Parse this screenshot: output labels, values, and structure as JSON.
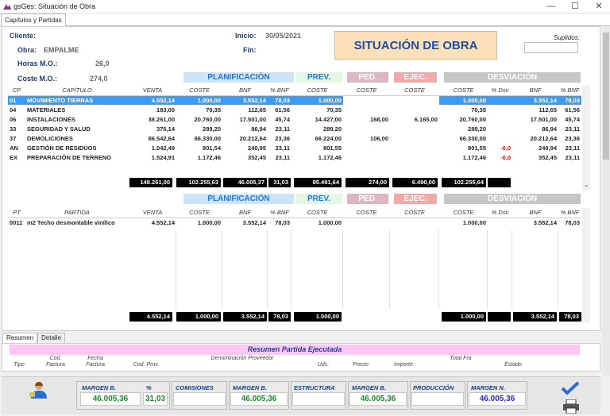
{
  "window": {
    "title": "gsGes: Situación de Obra",
    "minimize": "—",
    "maximize": "☐",
    "close": "✕"
  },
  "tabs": {
    "main": "Capítulos y Partidas"
  },
  "header": {
    "cliente_label": "Cliente:",
    "obra_label": "Obra:",
    "obra_value": "EMPALME",
    "horas_label": "Horas M.O.:",
    "horas_value": "26,0",
    "coste_label": "Coste M.O.:",
    "coste_value": "274,0",
    "inicio_label": "Inicio:",
    "inicio_value": "30/05/2021",
    "fin_label": "Fin:",
    "banner": "SITUACIÓN DE OBRA",
    "suplidos_label": "Suplidos:"
  },
  "groups": {
    "plan": "PLANIFICACIÓN",
    "prev": "PREV.",
    "ped": "PED.",
    "ejec": "EJEC.",
    "desv": "DESVIACIÓN"
  },
  "chapters": {
    "columns": [
      "CP",
      "CAPÍTULO",
      "VENTA",
      "COSTE",
      "BNF",
      "% BNF",
      "COSTE",
      "COSTE",
      "COSTE",
      "COSTE",
      "% Dsv",
      "BNF",
      "% BNF"
    ],
    "rows": [
      [
        "01",
        "MOVIMIENTO TIERRAS",
        "4.552,14",
        "1.000,00",
        "3.552,14",
        "78,03",
        "1.000,00",
        "",
        "",
        "1.000,00",
        "",
        "3.552,14",
        "78,03"
      ],
      [
        "04",
        "MATERIALES",
        "183,00",
        "70,35",
        "112,65",
        "61,56",
        "70,35",
        "",
        "",
        "70,35",
        "",
        "112,65",
        "61,56"
      ],
      [
        "06",
        "INSTALACIONES",
        "38.261,00",
        "20.760,00",
        "17.501,00",
        "45,74",
        "14.427,00",
        "168,00",
        "6.165,00",
        "20.760,00",
        "",
        "17.501,00",
        "45,74"
      ],
      [
        "33",
        "SEGURIDAD Y SALUD",
        "376,14",
        "289,20",
        "86,94",
        "23,11",
        "289,20",
        "",
        "",
        "289,20",
        "",
        "86,94",
        "23,11"
      ],
      [
        "37",
        "DEMOLICIONES",
        "86.542,64",
        "66.330,00",
        "20.212,64",
        "23,36",
        "66.224,00",
        "106,00",
        "",
        "66.330,00",
        "",
        "20.212,64",
        "23,36"
      ],
      [
        "AN",
        "GESTIÓN DE RESIDUOS",
        "1.042,49",
        "801,54",
        "240,95",
        "23,11",
        "801,55",
        "",
        "",
        "801,55",
        "-0,0",
        "240,94",
        "23,11"
      ],
      [
        "EX",
        "PREPARACIÓN DE TERRENO",
        "1.524,91",
        "1.172,46",
        "352,45",
        "23,11",
        "1.172,46",
        "",
        "",
        "1.172,46",
        "-0,0",
        "352,45",
        "23,11"
      ]
    ],
    "totals": [
      "148.261,00",
      "102.255,63",
      "46.005,37",
      "31,03",
      "95.491,64",
      "274,00",
      "6.490,00",
      "102.255,64"
    ]
  },
  "partidas": {
    "columns": [
      "PT",
      "PARTIDA",
      "VENTA",
      "COSTE",
      "BNF",
      "% BNF",
      "COSTE",
      "COSTE",
      "COSTE",
      "COSTE",
      "% Dsv",
      "BNF",
      "% BNF"
    ],
    "rows": [
      [
        "0011",
        "m2 Techo desmontable vinílico",
        "4.552,14",
        "1.000,00",
        "3.552,14",
        "78,03",
        "1.000,00",
        "",
        "",
        "1.000,00",
        "",
        "3.552,14",
        "78,03"
      ]
    ],
    "totals": [
      "4.552,14",
      "1.000,00",
      "3.552,14",
      "78,03",
      "1.000,00",
      "1.000,00",
      "3.552,14",
      "78,03"
    ]
  },
  "bottom_tabs": {
    "resumen": "Resumen",
    "detalle": "Detalle"
  },
  "resumen": {
    "title": "Resumen Partida Ejecutada",
    "columns": [
      "Tipo",
      "Cod. Factura",
      "Fecha Factura",
      "Cod. Prov.",
      "Denominación Proveedor",
      "Uds.",
      "Precio",
      "Importe",
      "Total Fra",
      "Estado"
    ]
  },
  "footer": {
    "margen_b_label": "MARGEN B.",
    "margen_b_value": "46.005,36",
    "pct_label": "%",
    "pct_value": "31,03",
    "comisiones_label": "COMISIONES",
    "margen_b2_label": "MARGEN B.",
    "margen_b2_value": "46.005,36",
    "estructura_label": "ESTRUCTURA",
    "margen_b3_label": "MARGEN B.",
    "margen_b3_value": "46.005,36",
    "produccion_label": "PRODUCCIÓN",
    "margen_n_label": "MARGEN N.",
    "margen_n_value": "46.005,36"
  },
  "icons": [
    "app-logo-icon",
    "user-icon",
    "checkmark-icon",
    "printer-icon"
  ],
  "colors": {
    "selected_row": "#3b9cf5",
    "banner": "#fce0b9",
    "total_bg": "#000000",
    "resumen_banner": "#fcc8f3",
    "value_green": "#1d8a2c"
  }
}
